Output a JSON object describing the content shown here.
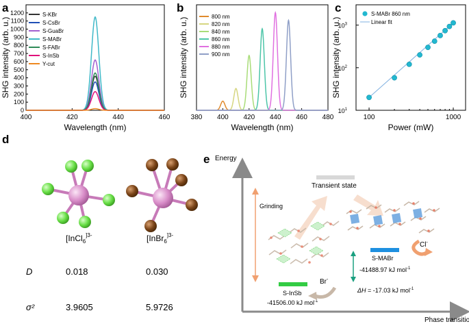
{
  "panel_letters": {
    "a": "a",
    "b": "b",
    "c": "c",
    "d": "d",
    "e": "e"
  },
  "chart_data": [
    {
      "panel": "a",
      "type": "line",
      "xlabel": "Wavelength (nm)",
      "ylabel": "SHG intensity (arb. u.)",
      "xlim": [
        400,
        460
      ],
      "ylim": [
        0,
        1300
      ],
      "xticks": [
        400,
        420,
        440,
        460
      ],
      "yticks": [
        0,
        100,
        200,
        300,
        400,
        500,
        600,
        700,
        800,
        900,
        1000,
        1100,
        1200
      ],
      "peak_center": 430,
      "peak_halfwidth": 1.6,
      "legend_position": "top-left",
      "series": [
        {
          "name": "S-KBr",
          "peak": 420,
          "color": "#333333"
        },
        {
          "name": "S-CsBr",
          "peak": 350,
          "color": "#1f4fb5"
        },
        {
          "name": "S-GuaBr",
          "peak": 620,
          "color": "#a25fd0"
        },
        {
          "name": "S-MABr",
          "peak": 1150,
          "color": "#3fb8c8"
        },
        {
          "name": "S-FABr",
          "peak": 460,
          "color": "#2e8b57"
        },
        {
          "name": "S-InSb",
          "peak": 230,
          "color": "#e0107a"
        },
        {
          "name": "Y-cut",
          "peak": 20,
          "color": "#ee8820"
        }
      ]
    },
    {
      "panel": "b",
      "type": "line",
      "xlabel": "Wavelength (nm)",
      "ylabel": "SHG intensity (arb. u.)",
      "xlim": [
        380,
        480
      ],
      "ylim": [
        0,
        1500
      ],
      "xticks": [
        380,
        400,
        420,
        440,
        460,
        480
      ],
      "peak_halfwidth": 1.6,
      "legend_position": "top-left",
      "series": [
        {
          "name": "800 nm",
          "center": 400,
          "peak": 130,
          "color": "#e08a2c"
        },
        {
          "name": "820 nm",
          "center": 410,
          "peak": 310,
          "color": "#d6d680"
        },
        {
          "name": "840 nm",
          "center": 420,
          "peak": 780,
          "color": "#a8dc78"
        },
        {
          "name": "860 nm",
          "center": 430,
          "peak": 1160,
          "color": "#4cc5a8"
        },
        {
          "name": "880 nm",
          "center": 440,
          "peak": 1390,
          "color": "#e070e0"
        },
        {
          "name": "900 nm",
          "center": 450,
          "peak": 1280,
          "color": "#8f9fc7"
        }
      ]
    },
    {
      "panel": "c",
      "type": "scatter",
      "scale": "log-log",
      "xlabel": "Power (mW)",
      "ylabel": "SHG intensity (arb. u.)",
      "xlim": [
        70,
        1400
      ],
      "ylim": [
        10,
        3000
      ],
      "xticks": [
        100,
        1000
      ],
      "xtick_labels": [
        "100",
        "1000"
      ],
      "yticks": [
        10,
        100,
        1000
      ],
      "ytick_labels": [
        "10",
        "10",
        "10"
      ],
      "ytick_exponents": [
        "1",
        "2",
        "3"
      ],
      "legend_position": "top-left",
      "legend": [
        "S-MABr 860 nm",
        "Linear fit"
      ],
      "x": [
        100,
        200,
        300,
        400,
        500,
        600,
        700,
        800,
        900,
        1000
      ],
      "y": [
        20,
        58,
        120,
        200,
        300,
        420,
        570,
        740,
        930,
        1130
      ],
      "fit": {
        "x": [
          100,
          1000
        ],
        "y": [
          20,
          1130
        ]
      },
      "marker_color": "#22b8d0",
      "fit_color": "#7fb0e0"
    }
  ],
  "panel_d": {
    "structure1_label": "[InCl",
    "structure1_sub": "6",
    "structure1_sup": "]3-",
    "structure2_label": "[InBr",
    "structure2_sub": "6",
    "structure2_sup": "]3-",
    "row1_label": "D",
    "row1_v1": "0.018",
    "row1_v2": "0.030",
    "row2_label": "σ²",
    "row2_v1": "3.9605",
    "row2_v2": "5.9726",
    "colors": {
      "center": "#d88cc8",
      "cl": "#66dd44",
      "br": "#7a4418",
      "bond": "#c77ab8"
    }
  },
  "panel_e": {
    "y_axis_label": "Energy",
    "x_axis_label": "Phase transition",
    "grinding": "Grinding",
    "transient": "Transient state",
    "s_insb": "S-InSb",
    "s_insb_energy": "-41506.00 kJ mol",
    "s_mabr": "S-MABr",
    "s_mabr_energy": "-41488.97 kJ mol",
    "delta_h_symbol": "ΔH",
    "delta_h_value": " = -17.03 kJ mol",
    "unit_exp": "-1",
    "br_ion": "Br",
    "br_sup": "-",
    "cl_ion": "Cl",
    "cl_sup": "-",
    "colors": {
      "insb_bar": "#33cc44",
      "mabr_bar": "#1e90e0",
      "transient_bar": "#d8d8d8",
      "arrow_orange": "#f0a070",
      "arrow_green": "#1aa080"
    }
  }
}
